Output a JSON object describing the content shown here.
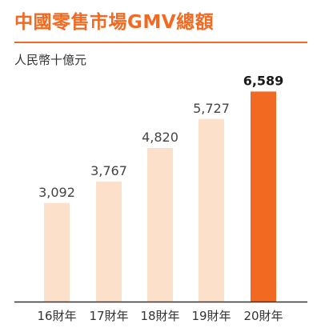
{
  "title": "中國零售市場GMV總額",
  "unit_label": "人民幣十億元",
  "colors": {
    "accent": "#f26a21",
    "bar": "#fde0ca",
    "bar_highlight": "#f26a21",
    "axis": "#333333"
  },
  "chart_data": {
    "type": "bar",
    "title": "中國零售市場GMV總額",
    "ylabel": "人民幣十億元",
    "xlabel": "",
    "categories": [
      "16財年",
      "17財年",
      "18財年",
      "19財年",
      "20財年"
    ],
    "values": [
      3092,
      3767,
      4820,
      5727,
      6589
    ],
    "value_labels": [
      "3,092",
      "3,767",
      "4,820",
      "5,727",
      "6,589"
    ],
    "highlight_index": 4,
    "ylim": [
      0,
      6700
    ],
    "grid": false,
    "legend": "none"
  }
}
